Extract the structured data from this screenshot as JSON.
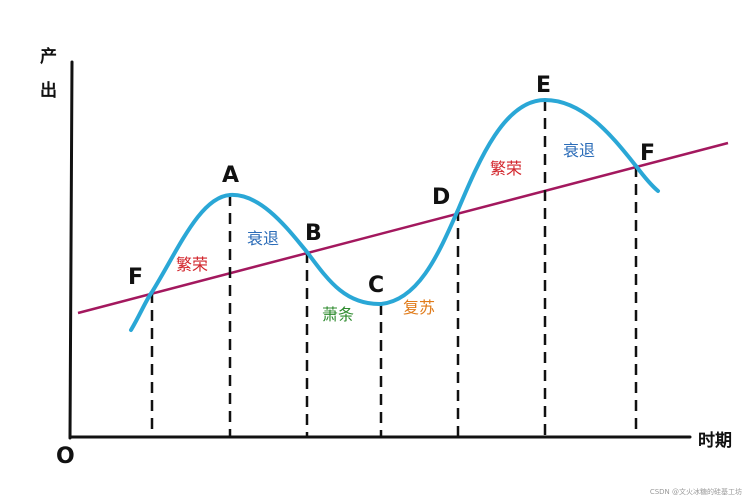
{
  "axes": {
    "y_label_line1": "产",
    "y_label_line2": "出",
    "x_label": "时期",
    "origin_label": "O"
  },
  "points": {
    "F1": "F",
    "A": "A",
    "B": "B",
    "C": "C",
    "D": "D",
    "E": "E",
    "F2": "F"
  },
  "phases": {
    "prosperity_1": "繁荣",
    "recession_1": "衰退",
    "depression": "萧条",
    "recovery": "复苏",
    "prosperity_2": "繁荣",
    "recession_2": "衰退"
  },
  "colors": {
    "axis": "#111111",
    "cycle_curve": "#2aa7d6",
    "trend_line": "#a3185e",
    "dashed": "#111111",
    "prosperity": "#d2232a",
    "recession": "#2b6cb8",
    "depression": "#2e8b2e",
    "recovery": "#e07b1a"
  },
  "watermark": "CSDN @文火冰糖的硅基工坊"
}
